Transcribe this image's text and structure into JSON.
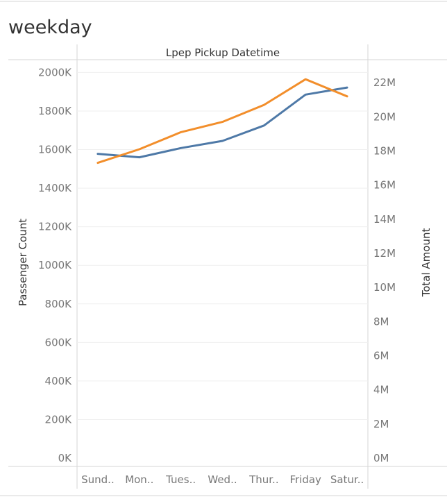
{
  "sheet": {
    "title": "weekday"
  },
  "chart_data": {
    "type": "line",
    "header": "Lpep Pickup Datetime",
    "categories": [
      "Sund..",
      "Mon..",
      "Tues..",
      "Wed..",
      "Thur..",
      "Friday",
      "Satur.."
    ],
    "series": [
      {
        "name": "Passenger Count",
        "axis": "left",
        "color": "#4e79a7",
        "values": [
          1578000,
          1560000,
          1608000,
          1645000,
          1725000,
          1885000,
          1922000
        ]
      },
      {
        "name": "Total Amount",
        "axis": "right",
        "color": "#f28e2b",
        "values": [
          17300000,
          18100000,
          19100000,
          19700000,
          20700000,
          22200000,
          21200000
        ]
      }
    ],
    "y_left": {
      "label": "Passenger Count",
      "ylim": [
        0,
        2050000
      ],
      "ticks": [
        0,
        200000,
        400000,
        600000,
        800000,
        1000000,
        1200000,
        1400000,
        1600000,
        1800000,
        2000000
      ],
      "tick_labels": [
        "0K",
        "200K",
        "400K",
        "600K",
        "800K",
        "1000K",
        "1200K",
        "1400K",
        "1600K",
        "1800K",
        "2000K"
      ]
    },
    "y_right": {
      "label": "Total Amount",
      "ylim": [
        0,
        23000000
      ],
      "ticks": [
        0,
        2000000,
        4000000,
        6000000,
        8000000,
        10000000,
        12000000,
        14000000,
        16000000,
        18000000,
        20000000,
        22000000
      ],
      "tick_labels": [
        "0M",
        "2M",
        "4M",
        "6M",
        "8M",
        "10M",
        "12M",
        "14M",
        "16M",
        "18M",
        "20M",
        "22M"
      ]
    },
    "grid": true
  }
}
